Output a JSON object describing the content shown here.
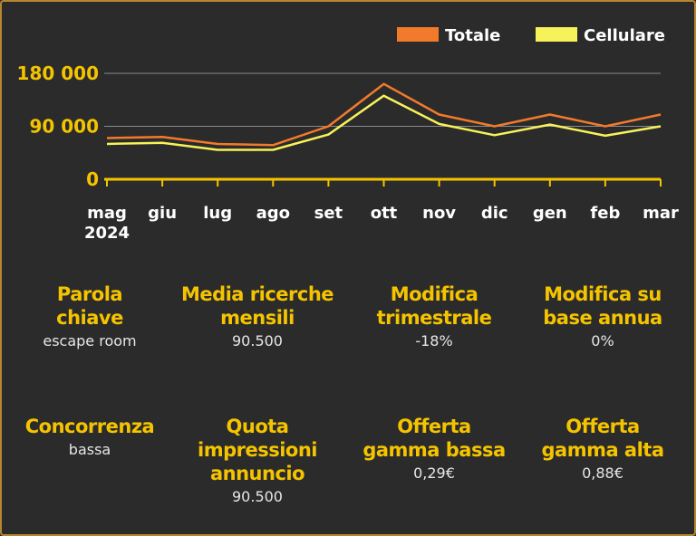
{
  "chart_data": {
    "type": "line",
    "categories": [
      "mag",
      "giu",
      "lug",
      "ago",
      "set",
      "ott",
      "nov",
      "dic",
      "gen",
      "feb",
      "mar"
    ],
    "year_label": "2024",
    "series": [
      {
        "name": "Totale",
        "color": "#f37a2b",
        "values": [
          70000,
          72000,
          60000,
          58000,
          90000,
          162000,
          110000,
          90000,
          110000,
          90000,
          110000
        ]
      },
      {
        "name": "Cellulare",
        "color": "#f7f25a",
        "values": [
          60000,
          62000,
          50000,
          50000,
          76000,
          142000,
          94000,
          75000,
          93000,
          74000,
          90000
        ]
      }
    ],
    "yticks": [
      0,
      90000,
      180000
    ],
    "ytick_labels": [
      "0",
      "90 000",
      "180 000"
    ],
    "ylim": [
      0,
      180000
    ],
    "grid": true,
    "legend_position": "top-right",
    "axis_color": "#f5c400",
    "grid_color": "#8a8a8a"
  },
  "stats": [
    {
      "label_lines": [
        "Parola",
        "chiave"
      ],
      "value": "escape room"
    },
    {
      "label_lines": [
        "Media ricerche",
        "mensili"
      ],
      "value": "90.500"
    },
    {
      "label_lines": [
        "Modifica",
        "trimestrale"
      ],
      "value": "-18%"
    },
    {
      "label_lines": [
        "Modifica su",
        "base annua"
      ],
      "value": "0%"
    },
    {
      "label_lines": [
        "Concorrenza"
      ],
      "value": "bassa"
    },
    {
      "label_lines": [
        "Quota",
        "impressioni",
        "annuncio"
      ],
      "value": "90.500"
    },
    {
      "label_lines": [
        "Offerta",
        "gamma bassa"
      ],
      "value": "0,29€"
    },
    {
      "label_lines": [
        "Offerta",
        "gamma alta"
      ],
      "value": "0,88€"
    }
  ]
}
